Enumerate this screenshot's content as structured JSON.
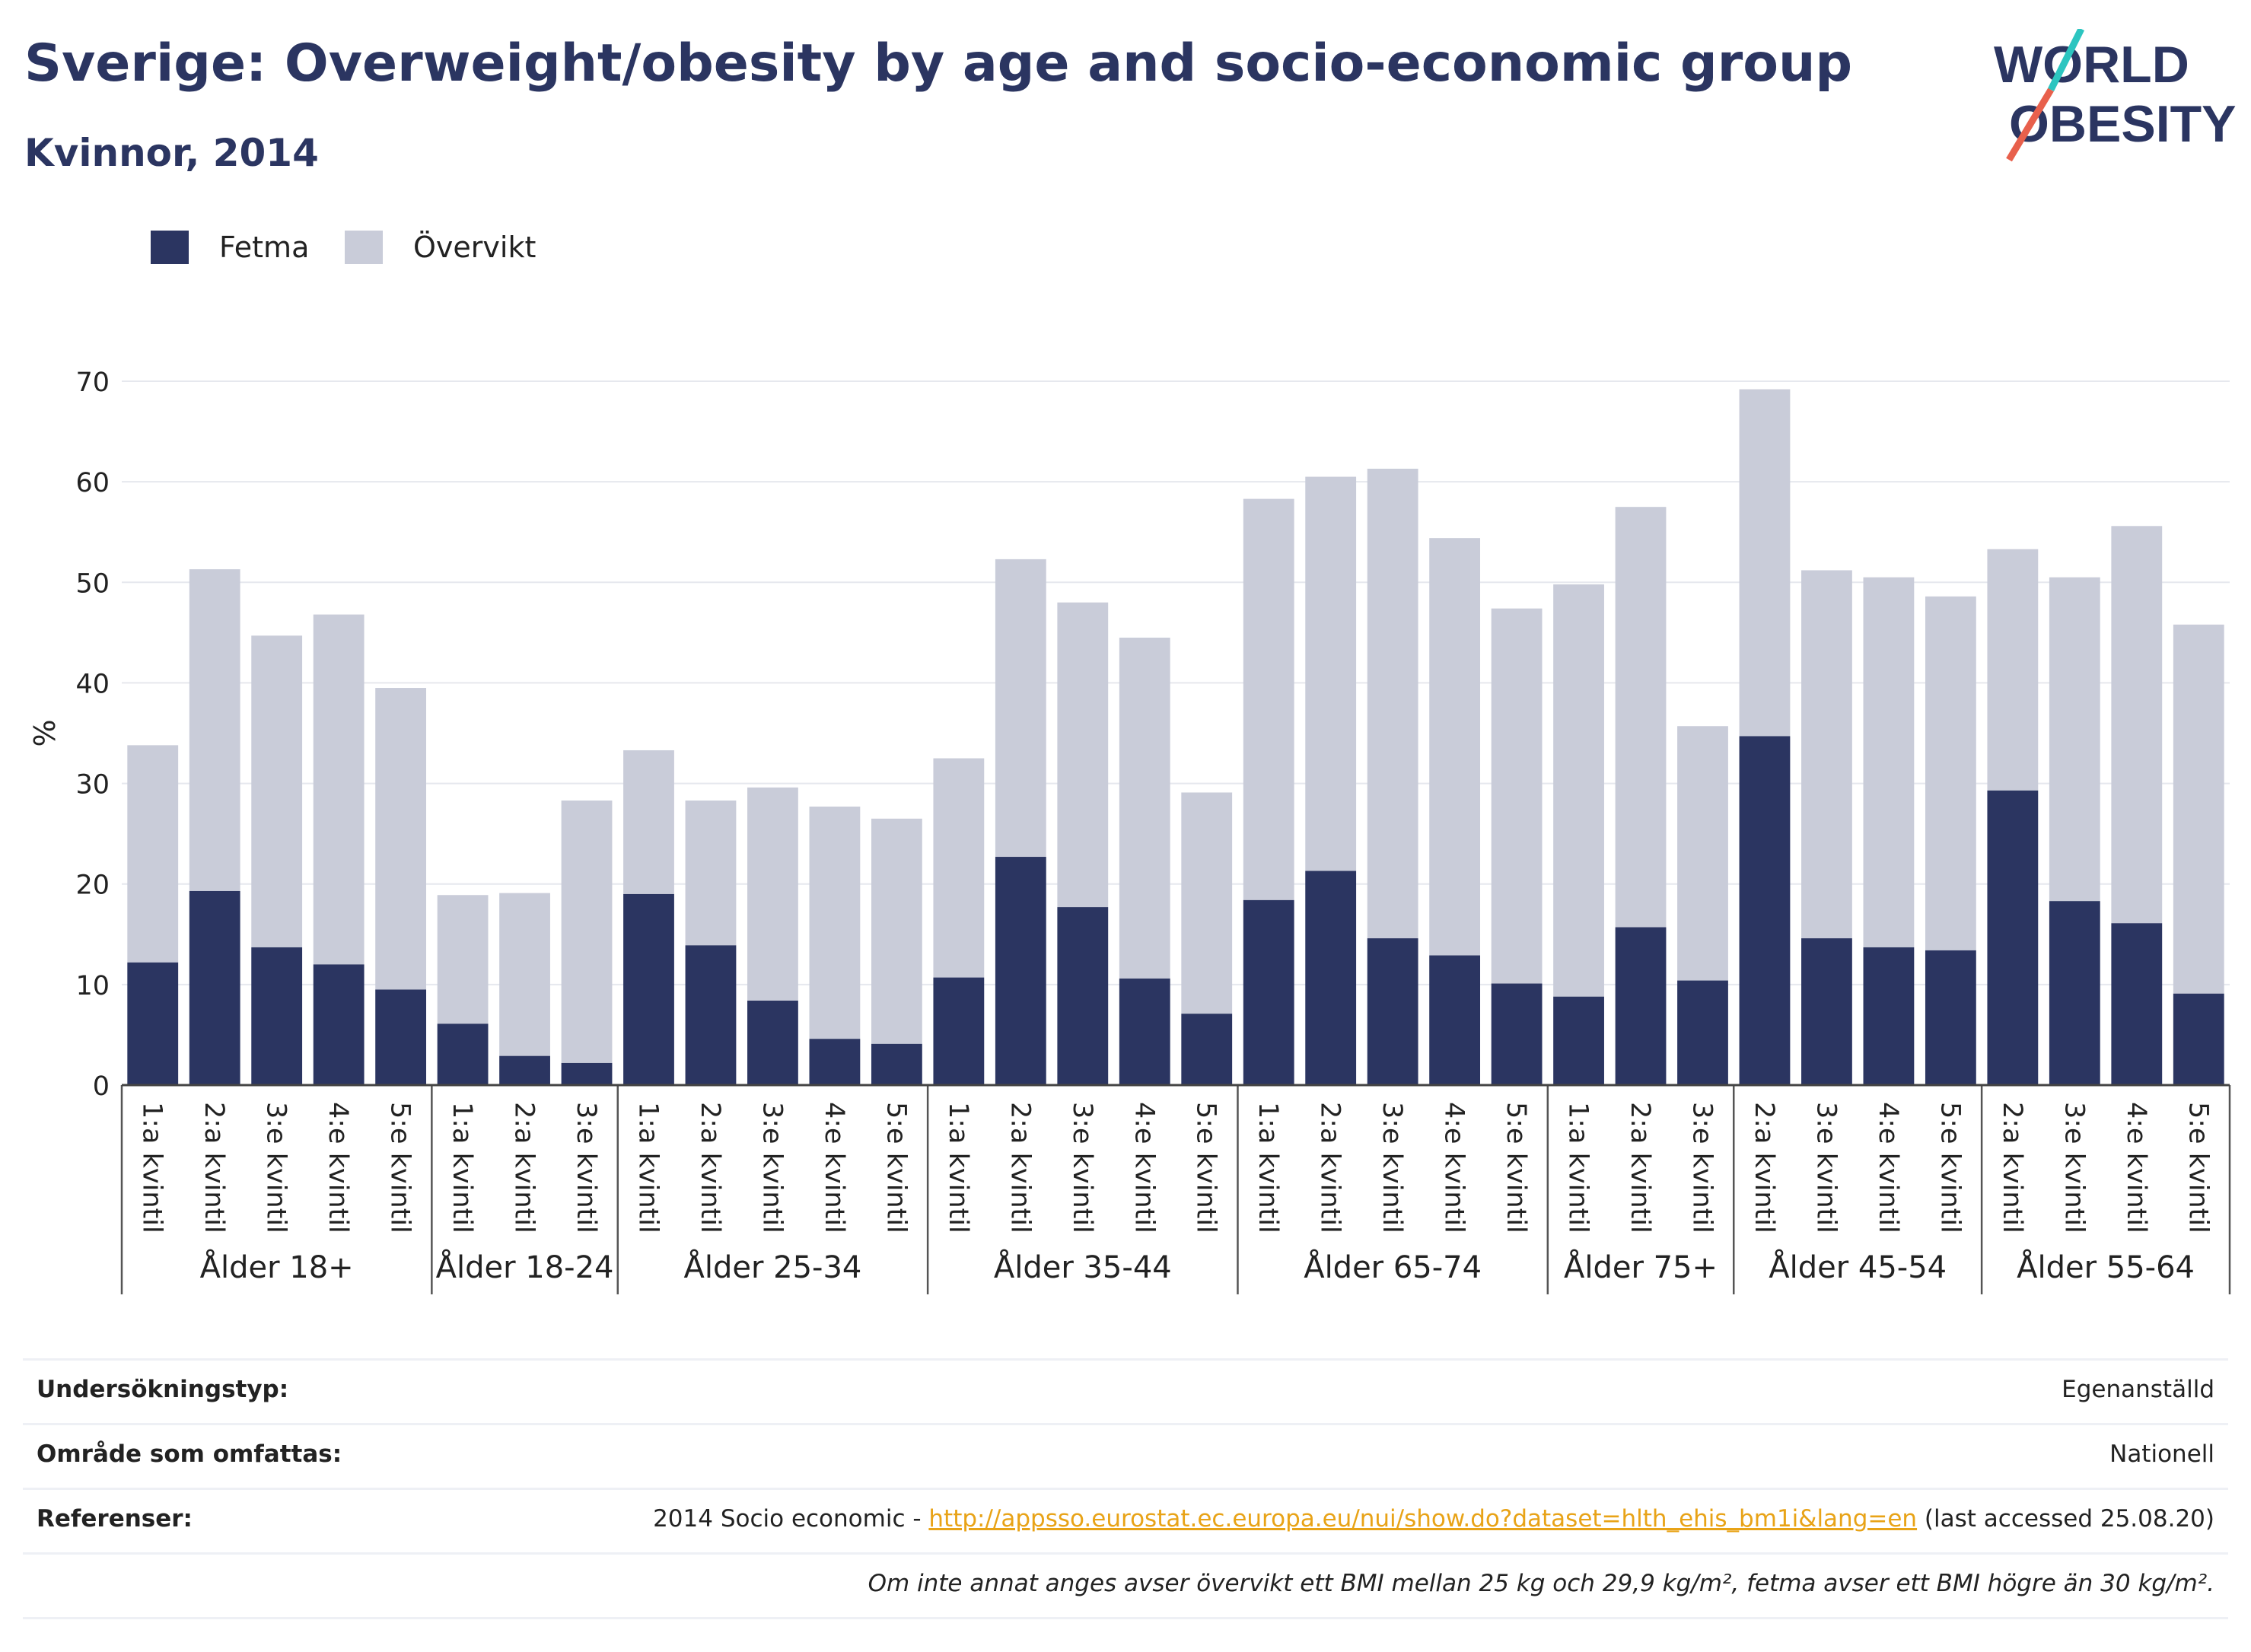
{
  "header": {
    "title": "Sverige: Overweight/obesity by age and socio-economic group",
    "subtitle": "Kvinnor, 2014"
  },
  "logo": {
    "line1": "WORLD",
    "line2": "OBESITY",
    "colors": {
      "text": "#2b3561",
      "slash_top": "#2cc5c0",
      "slash_bottom": "#e8604c"
    }
  },
  "legend": [
    {
      "label": "Fetma",
      "color": "#2b3561"
    },
    {
      "label": "Övervikt",
      "color": "#c9ccd9"
    }
  ],
  "chart_data": {
    "type": "bar",
    "stacked": true,
    "ylabel": "%",
    "ylim": [
      0,
      70
    ],
    "yticks": [
      0,
      10,
      20,
      30,
      40,
      50,
      60,
      70
    ],
    "grid": true,
    "legend_position": "top-left",
    "groups": [
      {
        "label": "Ålder 18+",
        "categories": [
          "1:a kvintil",
          "2:a kvintil",
          "3:e kvintil",
          "4:e kvintil",
          "5:e kvintil"
        ],
        "fetma": [
          12.2,
          19.3,
          13.7,
          12.0,
          9.5
        ],
        "overvikt": [
          21.6,
          32.0,
          31.0,
          34.8,
          30.0
        ]
      },
      {
        "label": "Ålder 18-24",
        "categories": [
          "1:a kvintil",
          "2:a kvintil",
          "3:e kvintil"
        ],
        "fetma": [
          6.1,
          2.9,
          2.2
        ],
        "overvikt": [
          12.8,
          16.2,
          26.1
        ]
      },
      {
        "label": "Ålder 25-34",
        "categories": [
          "1:a kvintil",
          "2:a kvintil",
          "3:e kvintil",
          "4:e kvintil",
          "5:e kvintil"
        ],
        "fetma": [
          19.0,
          13.9,
          8.4,
          4.6,
          4.1
        ],
        "overvikt": [
          14.3,
          14.4,
          21.2,
          23.1,
          22.4
        ]
      },
      {
        "label": "Ålder 35-44",
        "categories": [
          "1:a kvintil",
          "2:a kvintil",
          "3:e kvintil",
          "4:e kvintil",
          "5:e kvintil"
        ],
        "fetma": [
          10.7,
          22.7,
          17.7,
          10.6,
          7.1
        ],
        "overvikt": [
          21.8,
          29.6,
          30.3,
          33.9,
          22.0
        ]
      },
      {
        "label": "Ålder 65-74",
        "categories": [
          "1:a kvintil",
          "2:a kvintil",
          "3:e kvintil",
          "4:e kvintil",
          "5:e kvintil"
        ],
        "fetma": [
          18.4,
          21.3,
          14.6,
          12.9,
          10.1
        ],
        "overvikt": [
          39.9,
          39.2,
          46.7,
          41.5,
          37.3
        ]
      },
      {
        "label": "Ålder 75+",
        "categories": [
          "1:a kvintil",
          "2:a kvintil",
          "3:e kvintil"
        ],
        "fetma": [
          8.8,
          15.7,
          10.4
        ],
        "overvikt": [
          41.0,
          41.8,
          25.3
        ]
      },
      {
        "label": "Ålder 45-54",
        "categories": [
          "2:a kvintil",
          "3:e kvintil",
          "4:e kvintil",
          "5:e kvintil"
        ],
        "fetma": [
          34.7,
          14.6,
          13.7,
          13.4
        ],
        "overvikt": [
          34.5,
          36.6,
          36.8,
          35.2
        ]
      },
      {
        "label": "Ålder 55-64",
        "categories": [
          "2:a kvintil",
          "3:e kvintil",
          "4:e kvintil",
          "5:e kvintil"
        ],
        "fetma": [
          29.3,
          18.3,
          16.1,
          9.1
        ],
        "overvikt": [
          24.0,
          32.2,
          39.5,
          36.7
        ]
      }
    ]
  },
  "info": {
    "survey_label": "Undersökningstyp:",
    "survey_value": "Egenanställd",
    "area_label": "Område som omfattas:",
    "area_value": "Nationell",
    "ref_label": "Referenser:",
    "ref_prefix": "2014 Socio economic - ",
    "ref_link": "http://appsso.eurostat.ec.europa.eu/nui/show.do?dataset=hlth_ehis_bm1i&lang=en",
    "ref_suffix": " (last accessed 25.08.20)",
    "note": "Om inte annat anges avser övervikt ett BMI mellan 25 kg och 29,9 kg/m², fetma avser ett BMI högre än 30 kg/m²."
  }
}
